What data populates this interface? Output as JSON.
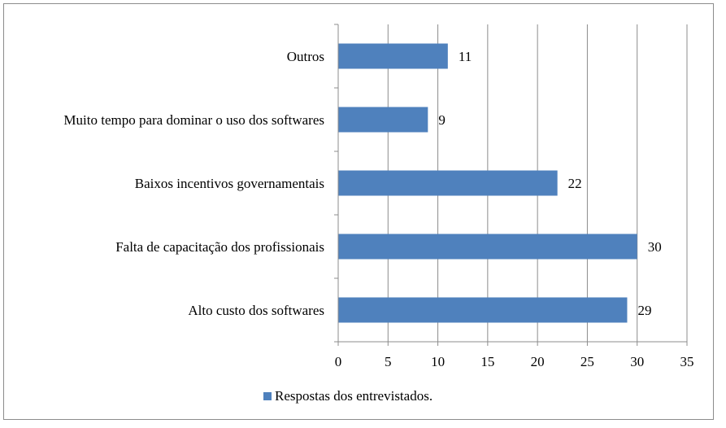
{
  "chart_data": {
    "type": "bar",
    "orientation": "horizontal",
    "categories": [
      "Alto custo dos softwares",
      "Falta de capacitação dos profissionais",
      "Baixos incentivos governamentais",
      "Muito tempo para dominar o uso dos softwares",
      "Outros"
    ],
    "series": [
      {
        "name": "Respostas dos entrevistados.",
        "values": [
          29,
          30,
          22,
          9,
          11
        ],
        "color": "#4f81bd"
      }
    ],
    "xlim": [
      0,
      35
    ],
    "xticks": [
      0,
      5,
      10,
      15,
      20,
      25,
      30,
      35
    ],
    "tick_labels": [
      "0",
      "5",
      "10",
      "15",
      "20",
      "25",
      "30",
      "35"
    ],
    "grid": "vertical",
    "legend": "bottom",
    "data_labels": true
  }
}
